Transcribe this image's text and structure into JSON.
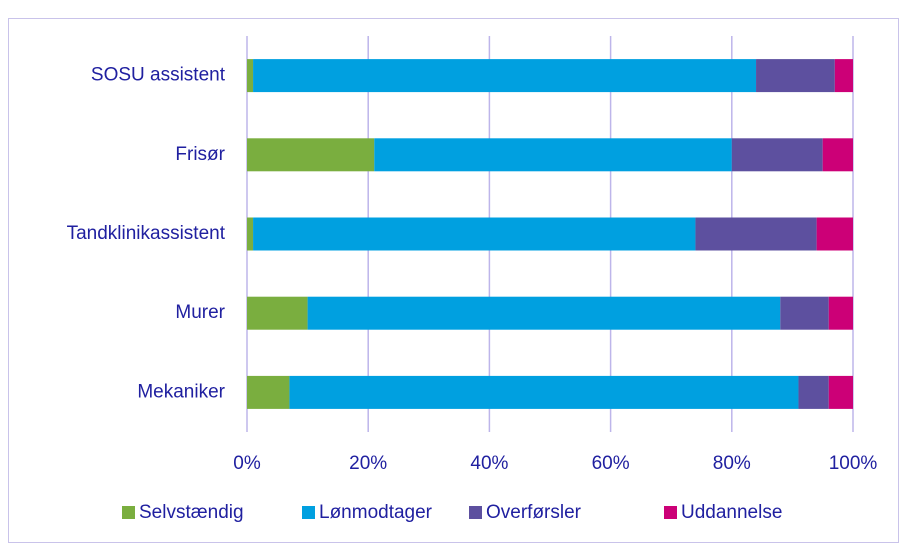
{
  "chart_data": {
    "type": "stacked_barh",
    "categories": [
      "SOSU assistent",
      "Frisør",
      "Tandklinikassistent",
      "Murer",
      "Mekaniker"
    ],
    "series": [
      {
        "name": "Selvstændig",
        "color": "#7aae3f",
        "values": [
          1,
          21,
          1,
          10,
          7
        ]
      },
      {
        "name": "Lønmodtager",
        "color": "#00a0e0",
        "values": [
          83,
          59,
          73,
          78,
          84
        ]
      },
      {
        "name": "Overførsler",
        "color": "#5d509f",
        "values": [
          13,
          15,
          20,
          8,
          5
        ]
      },
      {
        "name": "Uddannelse",
        "color": "#cc0077",
        "values": [
          3,
          5,
          6,
          4,
          4
        ]
      }
    ],
    "xlim": [
      0,
      100
    ],
    "xticks": [
      {
        "value": 0,
        "label": "0%"
      },
      {
        "value": 20,
        "label": "20%"
      },
      {
        "value": 40,
        "label": "40%"
      },
      {
        "value": 60,
        "label": "60%"
      },
      {
        "value": 80,
        "label": "80%"
      },
      {
        "value": 100,
        "label": "100%"
      }
    ],
    "grid": true,
    "legend": "bottom"
  }
}
